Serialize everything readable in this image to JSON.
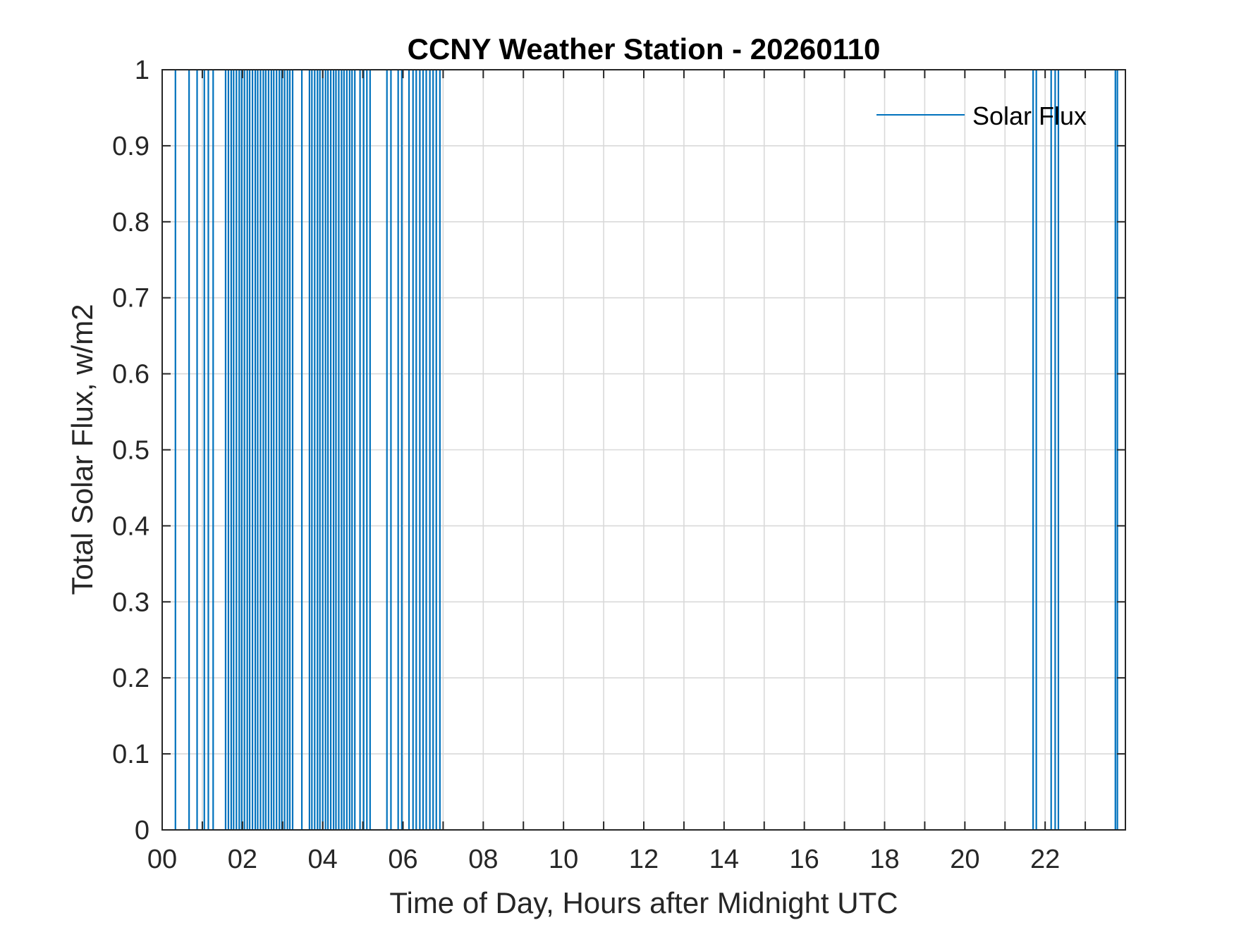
{
  "chart_data": {
    "type": "line",
    "title": "CCNY Weather Station - 20260110",
    "xlabel": "Time of Day, Hours after Midnight UTC",
    "ylabel": "Total Solar Flux, w/m2",
    "xlim": [
      0,
      24
    ],
    "ylim": [
      0,
      1
    ],
    "x_ticks": [
      "00",
      "02",
      "04",
      "06",
      "08",
      "10",
      "12",
      "14",
      "16",
      "18",
      "20",
      "22"
    ],
    "x_tick_values": [
      0,
      2,
      4,
      6,
      8,
      10,
      12,
      14,
      16,
      18,
      20,
      22
    ],
    "y_ticks": [
      "0",
      "0.1",
      "0.2",
      "0.3",
      "0.4",
      "0.5",
      "0.6",
      "0.7",
      "0.8",
      "0.9",
      "1"
    ],
    "y_tick_values": [
      0,
      0.1,
      0.2,
      0.3,
      0.4,
      0.5,
      0.6,
      0.7,
      0.8,
      0.9,
      1
    ],
    "grid": true,
    "grid_minor_x": true,
    "legend_position": "top-right",
    "series_color": "#0072BD",
    "series": [
      {
        "name": "Solar Flux",
        "description": "Readings toggle between 0 and 1 (or above); each listed x is a time at which the trace is at full scale",
        "x": [
          0.33,
          0.67,
          0.87,
          1.05,
          1.15,
          1.27,
          1.58,
          1.65,
          1.72,
          1.78,
          1.85,
          1.92,
          1.98,
          2.05,
          2.12,
          2.18,
          2.25,
          2.32,
          2.38,
          2.45,
          2.52,
          2.58,
          2.65,
          2.72,
          2.78,
          2.85,
          2.92,
          2.98,
          3.05,
          3.12,
          3.18,
          3.25,
          3.48,
          3.67,
          3.73,
          3.8,
          3.87,
          3.93,
          4.0,
          4.07,
          4.13,
          4.2,
          4.27,
          4.33,
          4.4,
          4.47,
          4.53,
          4.6,
          4.67,
          4.73,
          4.8,
          4.93,
          5.02,
          5.1,
          5.18,
          5.6,
          5.7,
          5.88,
          5.97,
          6.15,
          6.25,
          6.33,
          6.42,
          6.5,
          6.58,
          6.67,
          6.75,
          6.83,
          6.92,
          21.7,
          21.78,
          22.15,
          22.25,
          22.33,
          23.75,
          23.8
        ],
        "y": [
          1,
          1,
          1,
          1,
          1,
          1,
          1,
          1,
          1,
          1,
          1,
          1,
          1,
          1,
          1,
          1,
          1,
          1,
          1,
          1,
          1,
          1,
          1,
          1,
          1,
          1,
          1,
          1,
          1,
          1,
          1,
          1,
          1,
          1,
          1,
          1,
          1,
          1,
          1,
          1,
          1,
          1,
          1,
          1,
          1,
          1,
          1,
          1,
          1,
          1,
          1,
          1,
          1,
          1,
          1,
          1,
          1,
          1,
          1,
          1,
          1,
          1,
          1,
          1,
          1,
          1,
          1,
          1,
          1,
          1,
          1,
          1,
          1,
          1,
          1,
          1
        ]
      }
    ]
  }
}
